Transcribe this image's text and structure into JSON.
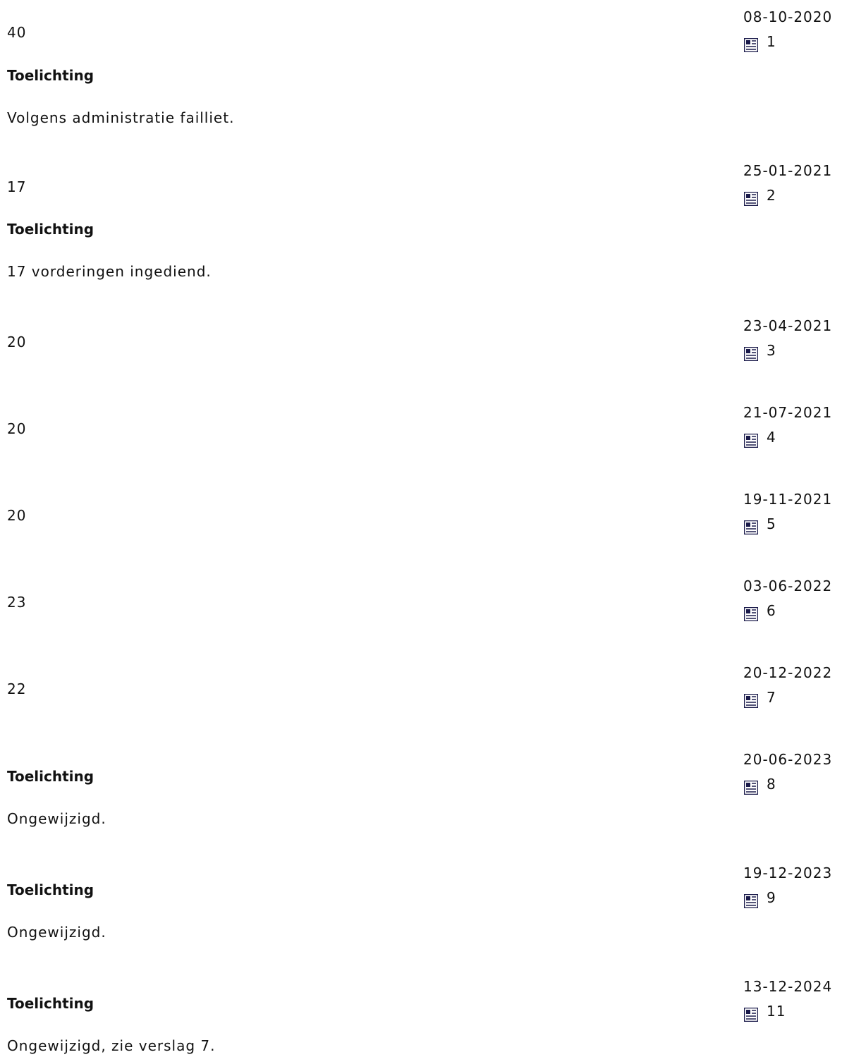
{
  "section_label": "Toelichting",
  "entries": [
    {
      "value": "40",
      "note": "Volgens administratie failliet.",
      "date": "08-10-2020",
      "report": "1"
    },
    {
      "value": "17",
      "note": "17 vorderingen ingediend.",
      "date": "25-01-2021",
      "report": "2"
    },
    {
      "value": "20",
      "note": "",
      "date": "23-04-2021",
      "report": "3"
    },
    {
      "value": "20",
      "note": "",
      "date": "21-07-2021",
      "report": "4"
    },
    {
      "value": "20",
      "note": "",
      "date": "19-11-2021",
      "report": "5"
    },
    {
      "value": "23",
      "note": "",
      "date": "03-06-2022",
      "report": "6"
    },
    {
      "value": "22",
      "note": "",
      "date": "20-12-2022",
      "report": "7"
    },
    {
      "value": "",
      "note": "Ongewijzigd.",
      "date": "20-06-2023",
      "report": "8"
    },
    {
      "value": "",
      "note": "Ongewijzigd.",
      "date": "19-12-2023",
      "report": "9"
    },
    {
      "value": "",
      "note": "Ongewijzigd, zie verslag 7.",
      "date": "13-12-2024",
      "report": "11"
    }
  ],
  "icons": {
    "report_icon": "document-icon"
  },
  "colors": {
    "icon_fill": "#1a1a4a",
    "text": "#111111"
  }
}
